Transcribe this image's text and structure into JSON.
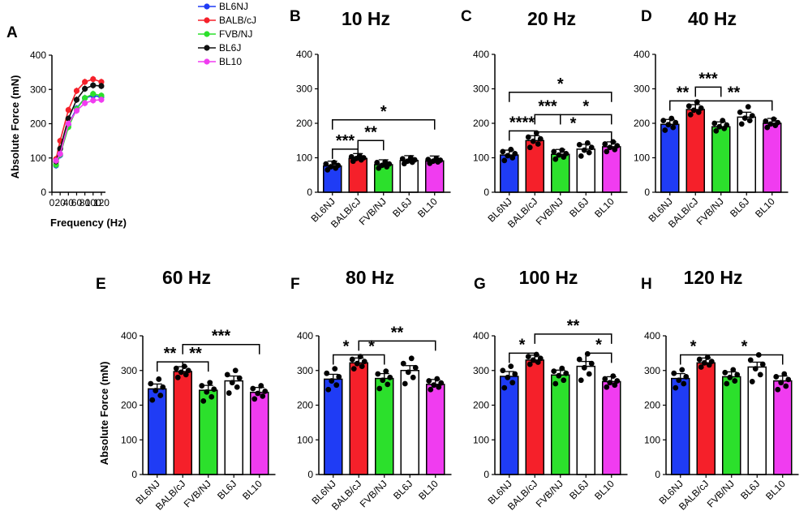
{
  "figure": {
    "legend": [
      {
        "name": "BL6NJ",
        "color": "#1f3cf5"
      },
      {
        "name": "BALB/cJ",
        "color": "#f5202a"
      },
      {
        "name": "FVB/NJ",
        "color": "#2ce02c"
      },
      {
        "name": "BL6J",
        "color": "#111111"
      },
      {
        "name": "BL10",
        "color": "#f03cf0"
      }
    ]
  },
  "chart_data": [
    {
      "panel": "A",
      "type": "line",
      "title": "",
      "xlabel": "Frequency (Hz)",
      "ylabel": "Absolute Force (mN)",
      "xlim": [
        0,
        130
      ],
      "ylim": [
        0,
        400
      ],
      "xticks": [
        "0",
        "20",
        "40",
        "60",
        "80",
        "100",
        "120"
      ],
      "yticks": [
        "0",
        "100",
        "200",
        "300",
        "400"
      ],
      "x": [
        10,
        20,
        40,
        60,
        80,
        100,
        120
      ],
      "series": [
        {
          "name": "BL6NJ",
          "color": "#1f3cf5",
          "values": [
            78,
            108,
            197,
            245,
            275,
            282,
            278
          ]
        },
        {
          "name": "BALB/cJ",
          "color": "#f5202a",
          "values": [
            97,
            150,
            240,
            296,
            322,
            330,
            322
          ]
        },
        {
          "name": "FVB/NJ",
          "color": "#2ce02c",
          "values": [
            80,
            110,
            190,
            243,
            275,
            287,
            282
          ]
        },
        {
          "name": "BL6J",
          "color": "#111111",
          "values": [
            90,
            127,
            215,
            270,
            302,
            312,
            310
          ]
        },
        {
          "name": "BL10",
          "color": "#f03cf0",
          "values": [
            92,
            112,
            200,
            238,
            260,
            268,
            270
          ]
        }
      ]
    },
    {
      "panel": "B",
      "type": "bar",
      "title": "10 Hz",
      "ylabel": "",
      "ylim": [
        0,
        400
      ],
      "yticks": [
        "0",
        "100",
        "200",
        "300",
        "400"
      ],
      "categories": [
        "BL6NJ",
        "BALB/cJ",
        "FVB/NJ",
        "BL6J",
        "BL10"
      ],
      "colors": [
        "#1f3cf5",
        "#f5202a",
        "#2ce02c",
        "#ffffff",
        "#f03cf0"
      ],
      "values": [
        76,
        98,
        80,
        92,
        91
      ],
      "points": [
        [
          65,
          70,
          74,
          78,
          82,
          86
        ],
        [
          90,
          94,
          98,
          100,
          103,
          106
        ],
        [
          70,
          74,
          78,
          82,
          86,
          88
        ],
        [
          83,
          87,
          90,
          94,
          97,
          100
        ],
        [
          84,
          88,
          90,
          93,
          95,
          98
        ]
      ],
      "significance": [
        {
          "from": 0,
          "to": 1,
          "y": 125,
          "label": "***"
        },
        {
          "from": 1,
          "to": 2,
          "y": 150,
          "label": "**"
        },
        {
          "from": 0,
          "to": 4,
          "y": 210,
          "label": "*"
        }
      ]
    },
    {
      "panel": "C",
      "type": "bar",
      "title": "20 Hz",
      "ylabel": "",
      "ylim": [
        0,
        400
      ],
      "yticks": [
        "0",
        "100",
        "200",
        "300",
        "400"
      ],
      "categories": [
        "BL6NJ",
        "BALB/cJ",
        "FVB/NJ",
        "BL6J",
        "BL10"
      ],
      "colors": [
        "#1f3cf5",
        "#f5202a",
        "#2ce02c",
        "#ffffff",
        "#f03cf0"
      ],
      "values": [
        108,
        150,
        110,
        125,
        132
      ],
      "points": [
        [
          92,
          100,
          106,
          112,
          118,
          124
        ],
        [
          130,
          140,
          148,
          155,
          160,
          172
        ],
        [
          96,
          102,
          108,
          112,
          118,
          122
        ],
        [
          105,
          115,
          122,
          130,
          138,
          143
        ],
        [
          118,
          124,
          130,
          135,
          140,
          146
        ]
      ],
      "significance": [
        {
          "from": 0,
          "to": 1,
          "y": 178,
          "label": "****"
        },
        {
          "from": 1,
          "to": 4,
          "y": 175,
          "label": "*"
        },
        {
          "from": 1,
          "to": 2,
          "y": 225,
          "label": "***"
        },
        {
          "from": 2,
          "to": 4,
          "y": 225,
          "label": "*"
        },
        {
          "from": 0,
          "to": 4,
          "y": 290,
          "label": "*"
        }
      ]
    },
    {
      "panel": "D",
      "type": "bar",
      "title": "40 Hz",
      "ylabel": "",
      "ylim": [
        0,
        400
      ],
      "yticks": [
        "0",
        "100",
        "200",
        "300",
        "400"
      ],
      "categories": [
        "BL6NJ",
        "BALB/cJ",
        "FVB/NJ",
        "BL6J",
        "BL10"
      ],
      "colors": [
        "#1f3cf5",
        "#f5202a",
        "#2ce02c",
        "#ffffff",
        "#f03cf0"
      ],
      "values": [
        197,
        240,
        190,
        218,
        200
      ],
      "points": [
        [
          180,
          188,
          196,
          202,
          208,
          214
        ],
        [
          225,
          232,
          238,
          244,
          250,
          262
        ],
        [
          178,
          185,
          190,
          195,
          200,
          208
        ],
        [
          198,
          208,
          215,
          222,
          232,
          248
        ],
        [
          188,
          194,
          198,
          202,
          206,
          212
        ]
      ],
      "significance": [
        {
          "from": 0,
          "to": 1,
          "y": 265,
          "label": "**"
        },
        {
          "from": 1,
          "to": 2,
          "y": 305,
          "label": "***"
        },
        {
          "from": 1,
          "to": 4,
          "y": 265,
          "label": "**"
        }
      ]
    },
    {
      "panel": "E",
      "type": "bar",
      "title": "60 Hz",
      "ylabel": "Absolute Force (mN)",
      "ylim": [
        0,
        400
      ],
      "yticks": [
        "0",
        "100",
        "200",
        "300",
        "400"
      ],
      "categories": [
        "BL6NJ",
        "BALB/cJ",
        "FVB/NJ",
        "BL6J",
        "BL10"
      ],
      "colors": [
        "#1f3cf5",
        "#f5202a",
        "#2ce02c",
        "#ffffff",
        "#f03cf0"
      ],
      "values": [
        247,
        297,
        243,
        270,
        237
      ],
      "points": [
        [
          215,
          228,
          242,
          252,
          262,
          275
        ],
        [
          280,
          288,
          295,
          300,
          306,
          312
        ],
        [
          212,
          224,
          238,
          246,
          256,
          265
        ],
        [
          235,
          252,
          265,
          278,
          288,
          300
        ],
        [
          218,
          226,
          234,
          240,
          248,
          256
        ]
      ],
      "significance": [
        {
          "from": 0,
          "to": 1,
          "y": 325,
          "label": "**"
        },
        {
          "from": 1,
          "to": 2,
          "y": 325,
          "label": "**"
        },
        {
          "from": 1,
          "to": 4,
          "y": 375,
          "label": "***"
        }
      ]
    },
    {
      "panel": "F",
      "type": "bar",
      "title": "80 Hz",
      "ylabel": "",
      "ylim": [
        0,
        400
      ],
      "yticks": [
        "0",
        "100",
        "200",
        "300",
        "400"
      ],
      "categories": [
        "BL6NJ",
        "BALB/cJ",
        "FVB/NJ",
        "BL6J",
        "BL10"
      ],
      "colors": [
        "#1f3cf5",
        "#f5202a",
        "#2ce02c",
        "#ffffff",
        "#f03cf0"
      ],
      "values": [
        275,
        322,
        277,
        300,
        260
      ],
      "points": [
        [
          245,
          258,
          270,
          282,
          292,
          305
        ],
        [
          305,
          312,
          320,
          326,
          332,
          340
        ],
        [
          248,
          260,
          272,
          280,
          290,
          298
        ],
        [
          262,
          280,
          295,
          308,
          320,
          335
        ],
        [
          245,
          252,
          258,
          264,
          270,
          276
        ]
      ],
      "significance": [
        {
          "from": 0,
          "to": 1,
          "y": 345,
          "label": "*"
        },
        {
          "from": 1,
          "to": 2,
          "y": 345,
          "label": "*"
        },
        {
          "from": 1,
          "to": 4,
          "y": 385,
          "label": "**"
        }
      ]
    },
    {
      "panel": "G",
      "type": "bar",
      "title": "100 Hz",
      "ylabel": "",
      "ylim": [
        0,
        400
      ],
      "yticks": [
        "0",
        "100",
        "200",
        "300",
        "400"
      ],
      "categories": [
        "BL6NJ",
        "BALB/cJ",
        "FVB/NJ",
        "BL6J",
        "BL10"
      ],
      "colors": [
        "#1f3cf5",
        "#f5202a",
        "#2ce02c",
        "#ffffff",
        "#f03cf0"
      ],
      "values": [
        283,
        330,
        287,
        312,
        268
      ],
      "points": [
        [
          250,
          265,
          280,
          290,
          300,
          312
        ],
        [
          318,
          324,
          330,
          335,
          340,
          346
        ],
        [
          262,
          272,
          285,
          292,
          298,
          306
        ],
        [
          272,
          290,
          308,
          320,
          332,
          348
        ],
        [
          252,
          258,
          265,
          270,
          276,
          284
        ]
      ],
      "significance": [
        {
          "from": 0,
          "to": 1,
          "y": 350,
          "label": "*"
        },
        {
          "from": 1,
          "to": 4,
          "y": 405,
          "label": "**"
        },
        {
          "from": 3,
          "to": 4,
          "y": 350,
          "label": "*"
        }
      ]
    },
    {
      "panel": "H",
      "type": "bar",
      "title": "120 Hz",
      "ylabel": "",
      "ylim": [
        0,
        400
      ],
      "yticks": [
        "0",
        "100",
        "200",
        "300",
        "400"
      ],
      "categories": [
        "BL6NJ",
        "BALB/cJ",
        "FVB/NJ",
        "BL6J",
        "BL10"
      ],
      "colors": [
        "#1f3cf5",
        "#f5202a",
        "#2ce02c",
        "#ffffff",
        "#f03cf0"
      ],
      "values": [
        277,
        322,
        282,
        310,
        270
      ],
      "points": [
        [
          250,
          262,
          272,
          282,
          292,
          302
        ],
        [
          310,
          316,
          322,
          326,
          332,
          338
        ],
        [
          262,
          270,
          280,
          288,
          294,
          302
        ],
        [
          268,
          288,
          305,
          318,
          330,
          345
        ],
        [
          245,
          255,
          265,
          274,
          282,
          290
        ]
      ],
      "significance": [
        {
          "from": 0,
          "to": 1,
          "y": 345,
          "label": "*"
        },
        {
          "from": 1,
          "to": 4,
          "y": 345,
          "label": "*"
        }
      ]
    }
  ]
}
